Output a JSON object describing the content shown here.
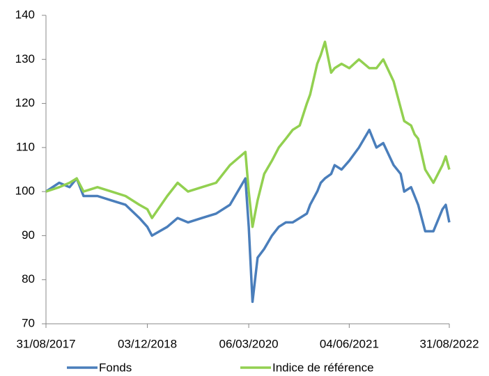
{
  "chart_data": {
    "type": "line",
    "x": [
      "31/08/2017",
      "30/10/2017",
      "16/12/2017",
      "17/01/2018",
      "17/02/2018",
      "21/04/2018",
      "23/06/2018",
      "26/08/2018",
      "28/10/2018",
      "03/12/2018",
      "24/12/2018",
      "03/03/2019",
      "19/04/2019",
      "05/06/2019",
      "07/08/2019",
      "10/10/2019",
      "12/12/2019",
      "20/02/2020",
      "06/03/2020",
      "23/03/2020",
      "15/04/2020",
      "15/05/2020",
      "19/06/2020",
      "20/07/2020",
      "21/08/2020",
      "21/09/2020",
      "23/10/2020",
      "24/11/2020",
      "09/12/2020",
      "10/01/2021",
      "26/01/2021",
      "14/02/2021",
      "14/03/2021",
      "30/03/2021",
      "30/04/2021",
      "04/06/2021",
      "18/07/2021",
      "03/09/2021",
      "05/10/2021",
      "05/11/2021",
      "22/12/2021",
      "23/01/2022",
      "08/02/2022",
      "11/03/2022",
      "27/03/2022",
      "12/04/2022",
      "14/05/2022",
      "20/06/2022",
      "31/07/2022",
      "15/08/2022",
      "31/08/2022"
    ],
    "series": [
      {
        "name": "Fonds",
        "color": "#4a7ebb",
        "values": [
          100,
          102,
          101,
          103,
          99,
          99,
          98,
          97,
          94,
          92,
          90,
          92,
          94,
          93,
          94,
          95,
          97,
          103,
          92,
          75,
          85,
          87,
          90,
          92,
          93,
          93,
          94,
          95,
          97,
          100,
          102,
          103,
          104,
          106,
          105,
          107,
          110,
          114,
          110,
          111,
          106,
          104,
          100,
          101,
          99,
          97,
          91,
          91,
          96,
          97,
          93
        ]
      },
      {
        "name": "Indice de référence",
        "color": "#92d050",
        "values": [
          100,
          101,
          102,
          103,
          100,
          101,
          100,
          99,
          97,
          96,
          94,
          99,
          102,
          100,
          101,
          102,
          106,
          109,
          100,
          92,
          98,
          104,
          107,
          110,
          112,
          114,
          115,
          120,
          122,
          129,
          131,
          134,
          127,
          128,
          129,
          128,
          130,
          128,
          128,
          130,
          125,
          119,
          116,
          115,
          113,
          112,
          105,
          102,
          106,
          108,
          105
        ]
      }
    ],
    "xlim": [
      "31/08/2017",
      "31/08/2022"
    ],
    "xticks": [
      "31/08/2017",
      "03/12/2018",
      "06/03/2020",
      "04/06/2021",
      "31/08/2022"
    ],
    "ylim": [
      70,
      140
    ],
    "yticks": [
      70,
      80,
      90,
      100,
      110,
      120,
      130,
      140
    ],
    "grid": false,
    "legend": "bottom"
  }
}
